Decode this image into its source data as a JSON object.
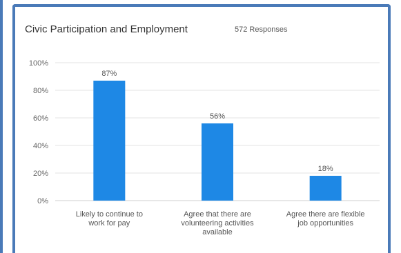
{
  "chart_data": {
    "type": "bar",
    "title": "Civic Participation and Employment",
    "subtitle": "572 Responses",
    "categories": [
      [
        "Likely to continue to",
        "work for pay"
      ],
      [
        "Agree that there are",
        "volunteering activities",
        "available"
      ],
      [
        "Agree there are flexible",
        "job opportunities"
      ]
    ],
    "values": [
      87,
      56,
      18
    ],
    "data_labels": [
      "87%",
      "56%",
      "18%"
    ],
    "yticks": [
      "0%",
      "20%",
      "40%",
      "60%",
      "80%",
      "100%"
    ],
    "ylim": [
      0,
      100
    ],
    "bar_color": "#1e88e5",
    "grid": true,
    "xlabel": "",
    "ylabel": ""
  }
}
